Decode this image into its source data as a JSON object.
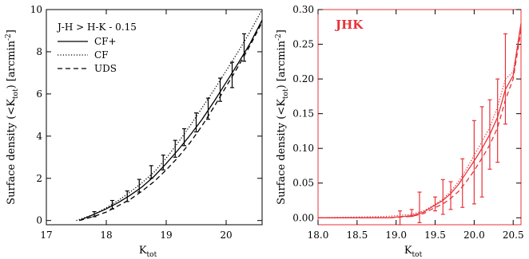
{
  "chart_data": [
    {
      "type": "line",
      "panel": "left",
      "annotation": "J-H > H-K - 0.15",
      "xlabel": "K",
      "xlabel_sub": "tot",
      "ylabel": "Surface density (<K",
      "ylabel_sub": "tot",
      "ylabel_end": ") [arcmin",
      "ylabel_sup": "-2",
      "ylabel_close": "]",
      "xlim": [
        17,
        20.6
      ],
      "ylim": [
        -0.2,
        10
      ],
      "xticks": [
        "17",
        "18",
        "19",
        "20"
      ],
      "xtick_values": [
        17,
        18,
        19,
        20
      ],
      "yticks": [
        "0",
        "2",
        "4",
        "6",
        "8",
        "10"
      ],
      "ytick_values": [
        0,
        2,
        4,
        6,
        8,
        10
      ],
      "color": "#000000",
      "series": [
        {
          "name": "CF+",
          "dash": "solid",
          "x": [
            17.55,
            17.8,
            18.0,
            18.2,
            18.4,
            18.6,
            18.8,
            19.0,
            19.2,
            19.4,
            19.6,
            19.8,
            20.0,
            20.2,
            20.4,
            20.6
          ],
          "y": [
            0.0,
            0.3,
            0.55,
            0.85,
            1.2,
            1.6,
            2.1,
            2.7,
            3.35,
            4.05,
            4.8,
            5.65,
            6.55,
            7.45,
            8.4,
            9.5
          ]
        },
        {
          "name": "CF",
          "dash": "dotted",
          "x": [
            17.5,
            17.8,
            18.0,
            18.2,
            18.4,
            18.6,
            18.8,
            19.0,
            19.2,
            19.4,
            19.6,
            19.8,
            20.0,
            20.2,
            20.4,
            20.6
          ],
          "y": [
            0.0,
            0.3,
            0.6,
            0.95,
            1.35,
            1.8,
            2.3,
            2.95,
            3.7,
            4.5,
            5.35,
            6.2,
            7.1,
            8.0,
            8.95,
            10.0
          ]
        },
        {
          "name": "UDS",
          "dash": "dashed",
          "x": [
            17.55,
            17.8,
            18.0,
            18.2,
            18.4,
            18.6,
            18.8,
            19.0,
            19.2,
            19.4,
            19.6,
            19.8,
            20.0,
            20.2,
            20.4,
            20.6
          ],
          "y": [
            0.0,
            0.2,
            0.4,
            0.7,
            1.0,
            1.4,
            1.85,
            2.4,
            3.0,
            3.7,
            4.5,
            5.4,
            6.35,
            7.3,
            8.3,
            9.4
          ]
        }
      ],
      "errorbars": [
        {
          "x": 17.8,
          "y": 0.3,
          "err": 0.12
        },
        {
          "x": 18.1,
          "y": 0.75,
          "err": 0.2
        },
        {
          "x": 18.35,
          "y": 1.15,
          "err": 0.25
        },
        {
          "x": 18.55,
          "y": 1.65,
          "err": 0.3
        },
        {
          "x": 18.75,
          "y": 2.3,
          "err": 0.3
        },
        {
          "x": 18.95,
          "y": 2.75,
          "err": 0.35
        },
        {
          "x": 19.15,
          "y": 3.4,
          "err": 0.4
        },
        {
          "x": 19.3,
          "y": 3.95,
          "err": 0.4
        },
        {
          "x": 19.5,
          "y": 4.65,
          "err": 0.45
        },
        {
          "x": 19.7,
          "y": 5.3,
          "err": 0.5
        },
        {
          "x": 19.9,
          "y": 6.2,
          "err": 0.55
        },
        {
          "x": 20.1,
          "y": 6.9,
          "err": 0.6
        },
        {
          "x": 20.3,
          "y": 8.2,
          "err": 0.65
        }
      ]
    },
    {
      "type": "line",
      "panel": "right",
      "title": "JHK",
      "xlabel": "K",
      "xlabel_sub": "tot",
      "ylabel": "Surface density (<K",
      "ylabel_sub": "tot",
      "ylabel_end": ") [arcmin",
      "ylabel_sup": "-2",
      "ylabel_close": "]",
      "xlim": [
        18.0,
        20.6
      ],
      "ylim": [
        -0.01,
        0.3
      ],
      "xticks": [
        "18.0",
        "18.5",
        "19.0",
        "19.5",
        "20.0",
        "20.5"
      ],
      "xtick_values": [
        18.0,
        18.5,
        19.0,
        19.5,
        20.0,
        20.5
      ],
      "yticks": [
        "0.00",
        "0.05",
        "0.10",
        "0.15",
        "0.20",
        "0.25",
        "0.30"
      ],
      "ytick_values": [
        0.0,
        0.05,
        0.1,
        0.15,
        0.2,
        0.25,
        0.3
      ],
      "color": "#e8333a",
      "series": [
        {
          "name": "CF+",
          "dash": "solid",
          "x": [
            18.0,
            18.9,
            19.2,
            19.35,
            19.45,
            19.6,
            19.7,
            19.8,
            19.9,
            20.0,
            20.1,
            20.2,
            20.3,
            20.4,
            20.5,
            20.6
          ],
          "y": [
            0.0,
            0.0,
            0.003,
            0.008,
            0.015,
            0.025,
            0.035,
            0.048,
            0.065,
            0.082,
            0.1,
            0.12,
            0.145,
            0.185,
            0.205,
            0.28
          ]
        },
        {
          "name": "CF",
          "dash": "dotted",
          "x": [
            18.0,
            18.9,
            19.2,
            19.35,
            19.45,
            19.6,
            19.7,
            19.8,
            19.9,
            20.0,
            20.1,
            20.2,
            20.3,
            20.4,
            20.5,
            20.6
          ],
          "y": [
            0.0,
            0.002,
            0.005,
            0.01,
            0.016,
            0.027,
            0.038,
            0.052,
            0.07,
            0.09,
            0.11,
            0.13,
            0.16,
            0.2,
            0.21,
            0.28
          ]
        },
        {
          "name": "UDS",
          "dash": "dashed",
          "x": [
            18.0,
            18.9,
            19.2,
            19.35,
            19.45,
            19.6,
            19.7,
            19.8,
            19.9,
            20.0,
            20.1,
            20.2,
            20.3,
            20.4,
            20.5,
            20.6
          ],
          "y": [
            0.0,
            0.0,
            0.002,
            0.006,
            0.012,
            0.02,
            0.028,
            0.038,
            0.052,
            0.068,
            0.086,
            0.105,
            0.13,
            0.17,
            0.2,
            0.27
          ]
        }
      ],
      "errorbars": [
        {
          "x": 19.05,
          "y": 0.0,
          "err": 0.01
        },
        {
          "x": 19.2,
          "y": 0.007,
          "err": 0.005
        },
        {
          "x": 19.3,
          "y": 0.015,
          "err": 0.022
        },
        {
          "x": 19.5,
          "y": 0.02,
          "err": 0.01
        },
        {
          "x": 19.6,
          "y": 0.03,
          "err": 0.025
        },
        {
          "x": 19.7,
          "y": 0.032,
          "err": 0.02
        },
        {
          "x": 19.85,
          "y": 0.05,
          "err": 0.035
        },
        {
          "x": 20.0,
          "y": 0.08,
          "err": 0.06
        },
        {
          "x": 20.1,
          "y": 0.095,
          "err": 0.065
        },
        {
          "x": 20.2,
          "y": 0.12,
          "err": 0.05
        },
        {
          "x": 20.3,
          "y": 0.14,
          "err": 0.06
        },
        {
          "x": 20.4,
          "y": 0.2,
          "err": 0.065
        }
      ]
    }
  ]
}
